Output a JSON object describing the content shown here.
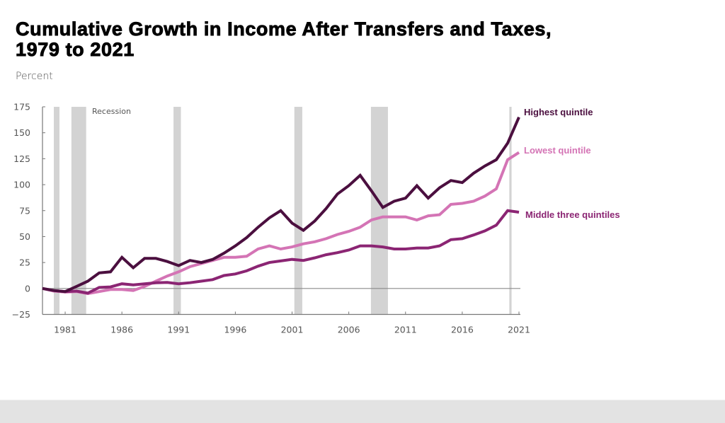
{
  "chart_data": {
    "type": "line",
    "title": "Cumulative Growth in Income After Transfers and Taxes, 1979 to 2021",
    "title_lines": [
      "Cumulative Growth in Income After Transfers and Taxes,",
      "1979 to 2021"
    ],
    "ylabel": "Percent",
    "xlabel": "",
    "ylim": [
      -25,
      175
    ],
    "xlim": [
      1979,
      2021
    ],
    "yticks": [
      -25,
      0,
      25,
      50,
      75,
      100,
      125,
      150,
      175
    ],
    "xticks": [
      1981,
      1986,
      1991,
      1996,
      2001,
      2006,
      2011,
      2016,
      2021
    ],
    "grid": false,
    "zero_line": true,
    "recession_label": "Recession",
    "recessions": [
      [
        1980.0,
        1980.5
      ],
      [
        1981.55,
        1982.85
      ],
      [
        1990.55,
        1991.2
      ],
      [
        2001.2,
        2001.9
      ],
      [
        2007.95,
        2009.45
      ],
      [
        2020.15,
        2020.35
      ]
    ],
    "x": [
      1979,
      1980,
      1981,
      1982,
      1983,
      1984,
      1985,
      1986,
      1987,
      1988,
      1989,
      1990,
      1991,
      1992,
      1993,
      1994,
      1995,
      1996,
      1997,
      1998,
      1999,
      2000,
      2001,
      2002,
      2003,
      2004,
      2005,
      2006,
      2007,
      2008,
      2009,
      2010,
      2011,
      2012,
      2013,
      2014,
      2015,
      2016,
      2017,
      2018,
      2019,
      2020,
      2021
    ],
    "series": [
      {
        "name": "Highest quintile",
        "color": "#4b0f3f",
        "values": [
          0,
          -2,
          -3,
          2,
          7,
          15,
          16,
          30,
          20,
          29,
          29,
          26,
          22,
          27,
          25,
          28,
          34,
          41,
          49,
          59,
          68,
          75,
          63,
          56,
          65,
          77,
          91,
          99,
          109,
          94,
          78,
          84,
          87,
          99,
          87,
          97,
          104,
          102,
          111,
          118,
          124,
          140,
          165
        ]
      },
      {
        "name": "Lowest quintile",
        "color": "#d474b5",
        "values": [
          0,
          -2.5,
          -3.5,
          -3,
          -5,
          -3,
          -1,
          -1,
          -2,
          2,
          7,
          12,
          16,
          21,
          24,
          27,
          30,
          30,
          31,
          38,
          41,
          38,
          40,
          43,
          45,
          48,
          52,
          55,
          59,
          66,
          69,
          69,
          69,
          66,
          70,
          71,
          81,
          82,
          84,
          89,
          96,
          124,
          131
        ]
      },
      {
        "name": "Middle three quintiles",
        "color": "#8b2573",
        "values": [
          0,
          -2,
          -3,
          -2.5,
          -4.5,
          1,
          1.5,
          4.5,
          3.5,
          4.5,
          5.5,
          5.8,
          4.5,
          5.5,
          7,
          8.5,
          12.5,
          14,
          17,
          21.5,
          25,
          26.5,
          28,
          27,
          29.5,
          32.5,
          34.5,
          37,
          41,
          41,
          40,
          38,
          38,
          39,
          39,
          41,
          47,
          48,
          51.5,
          55.5,
          61,
          75,
          73.5
        ]
      }
    ]
  }
}
